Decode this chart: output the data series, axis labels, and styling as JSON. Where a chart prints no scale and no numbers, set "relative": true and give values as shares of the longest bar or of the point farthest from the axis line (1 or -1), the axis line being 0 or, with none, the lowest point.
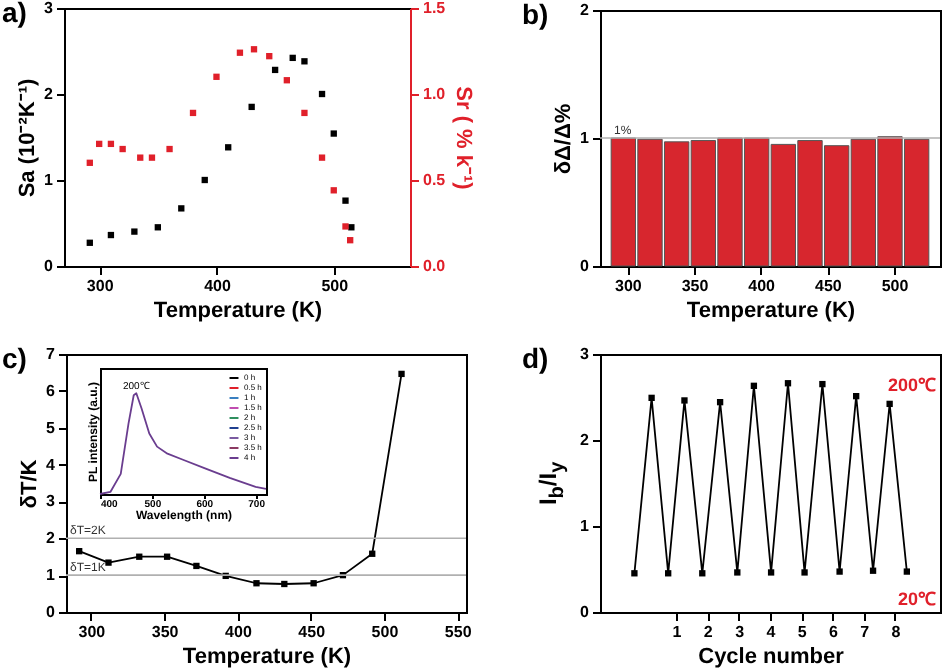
{
  "chart_data": [
    {
      "type": "scatter",
      "title": "a)",
      "xlabel": "Temperature (K)",
      "ylabel": "Sa (10⁻²K⁻¹)",
      "y2label": "Sr ( % k⁻¹)",
      "marker": "square",
      "xlim": [
        270,
        565
      ],
      "xticks": [
        300,
        400,
        500
      ],
      "ylim": [
        0,
        3
      ],
      "yticks": [
        0,
        1,
        2,
        3
      ],
      "y2lim": [
        0,
        1.5
      ],
      "y2ticks": [
        {
          "value": 0,
          "label": "0.0"
        },
        0.5,
        {
          "value": 1,
          "label": "1.0"
        },
        1.5
      ],
      "series": [
        {
          "color": "#000000",
          "x": [
            292,
            310,
            330,
            350,
            370,
            390,
            410,
            430,
            450,
            465,
            475,
            490,
            500,
            510,
            515
          ],
          "values": [
            0.27,
            0.36,
            0.4,
            0.45,
            0.67,
            1.0,
            1.38,
            1.85,
            2.28,
            2.42,
            2.38,
            2.0,
            1.54,
            0.76,
            0.45
          ]
        },
        {
          "color": "#e0202a",
          "axis": "y2",
          "x": [
            292,
            300,
            310,
            320,
            335,
            345,
            360,
            380,
            400,
            420,
            432,
            445,
            460,
            475,
            490,
            500,
            510,
            514
          ],
          "values": [
            0.6,
            0.71,
            0.71,
            0.68,
            0.63,
            0.63,
            0.68,
            0.89,
            1.1,
            1.24,
            1.26,
            1.22,
            1.08,
            0.89,
            0.63,
            0.44,
            0.23,
            0.15
          ]
        }
      ]
    },
    {
      "type": "bar",
      "title": "b)",
      "xlabel": "Temperature (K)",
      "ylabel": "δΔ/Δ%",
      "xlim": [
        287,
        527
      ],
      "xticks": [
        300,
        350,
        400,
        450,
        500
      ],
      "ylim": [
        0,
        2
      ],
      "yticks": [
        0,
        1,
        2
      ],
      "x": [
        297,
        317,
        337,
        357,
        377,
        397,
        417,
        437,
        457,
        477,
        497,
        517
      ],
      "series": [
        {
          "color": "#d7262e",
          "values": [
            1.0,
            0.99,
            0.97,
            0.98,
            1.0,
            1.0,
            0.95,
            0.98,
            0.94,
            0.99,
            1.01,
            0.99
          ]
        }
      ],
      "ref_lines": [
        {
          "axis": "y",
          "value": 1,
          "label": "1%"
        }
      ]
    },
    {
      "type": "line",
      "title": "c)",
      "xlabel": "Temperature (K)",
      "ylabel": "δT/K",
      "marker": "square",
      "xlim": [
        283,
        556
      ],
      "xticks": [
        300,
        350,
        400,
        450,
        500,
        550
      ],
      "ylim": [
        0,
        7
      ],
      "yticks": [
        0,
        1,
        2,
        3,
        4,
        5,
        6,
        7
      ],
      "x": [
        292,
        312,
        333,
        352,
        372,
        392,
        413,
        432,
        452,
        472,
        492,
        512
      ],
      "series": [
        {
          "color": "#000000",
          "values": [
            1.65,
            1.34,
            1.5,
            1.5,
            1.25,
            0.98,
            0.78,
            0.76,
            0.78,
            1.0,
            1.58,
            6.46
          ]
        }
      ],
      "ref_lines": [
        {
          "axis": "y",
          "value": 2,
          "label": "δT=2K"
        },
        {
          "axis": "y",
          "value": 1,
          "label": "δT=1K"
        }
      ]
    },
    {
      "type": "line",
      "xlabel": "Wavelength (nm)",
      "ylabel": "PL intensity (a.u.)",
      "relative": true,
      "tick_labels": "x",
      "legend": "top right",
      "xlim": [
        400,
        720
      ],
      "xticks": [
        400,
        500,
        600,
        700
      ],
      "x": [
        400,
        420,
        440,
        455,
        465,
        470,
        480,
        495,
        510,
        530,
        560,
        600,
        650,
        700,
        720
      ],
      "series": [
        {
          "name": "0 h",
          "color": "#000000",
          "values": [
            null,
            null,
            null,
            null,
            null,
            null,
            null,
            null,
            null,
            null,
            null,
            null,
            null,
            null,
            null
          ]
        },
        {
          "name": "0.5 h",
          "color": "#e0202a",
          "values": [
            null,
            null,
            null,
            null,
            null,
            null,
            null,
            null,
            null,
            null,
            null,
            null,
            null,
            null,
            null
          ]
        },
        {
          "name": "1 h",
          "color": "#3a7fc0",
          "values": [
            null,
            null,
            null,
            null,
            null,
            null,
            null,
            null,
            null,
            null,
            null,
            null,
            null,
            null,
            null
          ]
        },
        {
          "name": "1.5 h",
          "color": "#c04cb0",
          "values": [
            null,
            null,
            null,
            null,
            null,
            null,
            null,
            null,
            null,
            null,
            null,
            null,
            null,
            null,
            null
          ]
        },
        {
          "name": "2 h",
          "color": "#2f8f5f",
          "values": [
            null,
            null,
            null,
            null,
            null,
            null,
            null,
            null,
            null,
            null,
            null,
            null,
            null,
            null,
            null
          ]
        },
        {
          "name": "2.5 h",
          "color": "#1f3f8f",
          "values": [
            null,
            null,
            null,
            null,
            null,
            null,
            null,
            null,
            null,
            null,
            null,
            null,
            null,
            null,
            null
          ]
        },
        {
          "name": "3 h",
          "color": "#7a5aa0",
          "values": [
            null,
            null,
            null,
            null,
            null,
            null,
            null,
            null,
            null,
            null,
            null,
            null,
            null,
            null,
            null
          ]
        },
        {
          "name": "3.5 h",
          "color": "#8b3a62",
          "values": [
            null,
            null,
            null,
            null,
            null,
            null,
            null,
            null,
            null,
            null,
            null,
            null,
            null,
            null,
            null
          ]
        },
        {
          "name": "4 h",
          "color": "#6a3d8f",
          "values": [
            0,
            0.02,
            0.2,
            0.7,
            0.98,
            1.0,
            0.85,
            0.6,
            0.47,
            0.4,
            0.34,
            0.26,
            0.16,
            0.07,
            0.05
          ]
        }
      ],
      "annotations": [
        {
          "text": "200℃",
          "x": 470,
          "y": 1.0
        }
      ]
    },
    {
      "type": "line",
      "title": "d)",
      "xlabel": "Cycle number",
      "ylabel": "I$_{b}$/I$_{y}$",
      "marker": "square",
      "xlim": [
        -1.43,
        9.44
      ],
      "xticks": [
        1,
        2,
        3,
        4,
        5,
        6,
        7,
        8
      ],
      "ylim": [
        0,
        3
      ],
      "yticks": [
        0,
        1,
        2,
        3
      ],
      "x": [
        -0.33,
        0.22,
        0.75,
        1.27,
        1.84,
        2.41,
        2.96,
        3.49,
        4.04,
        4.58,
        5.11,
        5.68,
        6.23,
        6.76,
        7.3,
        7.83,
        8.38
      ],
      "series": [
        {
          "color": "#000000",
          "values": [
            0.45,
            2.49,
            0.45,
            2.46,
            0.45,
            2.44,
            0.46,
            2.63,
            0.46,
            2.66,
            0.46,
            2.65,
            0.47,
            2.51,
            0.48,
            2.42,
            0.47
          ]
        }
      ],
      "annotations": [
        "200℃",
        "20℃"
      ]
    }
  ]
}
